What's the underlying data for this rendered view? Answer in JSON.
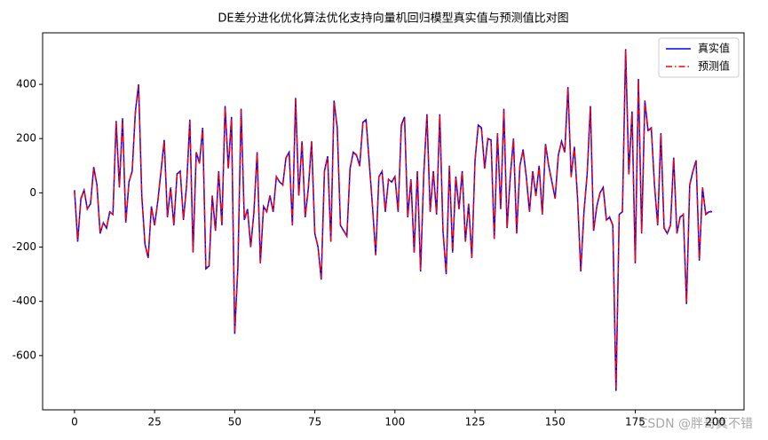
{
  "chart_data": {
    "type": "line",
    "title": "DE差分进化优化算法优化支持向量机回归模型真实值与预测值比对图",
    "watermark": "CSDN @胖哥真不错",
    "legend": "upper right",
    "xlim": [
      -9.95,
      208.95
    ],
    "ylim": [
      -800,
      590
    ],
    "xticks": [
      0,
      25,
      50,
      75,
      100,
      125,
      150,
      175,
      200
    ],
    "yticks": [
      -600,
      -400,
      -200,
      0,
      200,
      400
    ],
    "x": [
      0,
      1,
      2,
      3,
      4,
      5,
      6,
      7,
      8,
      9,
      10,
      11,
      12,
      13,
      14,
      15,
      16,
      17,
      18,
      19,
      20,
      21,
      22,
      23,
      24,
      25,
      26,
      27,
      28,
      29,
      30,
      31,
      32,
      33,
      34,
      35,
      36,
      37,
      38,
      39,
      40,
      41,
      42,
      43,
      44,
      45,
      46,
      47,
      48,
      49,
      50,
      51,
      52,
      53,
      54,
      55,
      56,
      57,
      58,
      59,
      60,
      61,
      62,
      63,
      64,
      65,
      66,
      67,
      68,
      69,
      70,
      71,
      72,
      73,
      74,
      75,
      76,
      77,
      78,
      79,
      80,
      81,
      82,
      83,
      84,
      85,
      86,
      87,
      88,
      89,
      90,
      91,
      92,
      93,
      94,
      95,
      96,
      97,
      98,
      99,
      100,
      101,
      102,
      103,
      104,
      105,
      106,
      107,
      108,
      109,
      110,
      111,
      112,
      113,
      114,
      115,
      116,
      117,
      118,
      119,
      120,
      121,
      122,
      123,
      124,
      125,
      126,
      127,
      128,
      129,
      130,
      131,
      132,
      133,
      134,
      135,
      136,
      137,
      138,
      139,
      140,
      141,
      142,
      143,
      144,
      145,
      146,
      147,
      148,
      149,
      150,
      151,
      152,
      153,
      154,
      155,
      156,
      157,
      158,
      159,
      160,
      161,
      162,
      163,
      164,
      165,
      166,
      167,
      168,
      169,
      170,
      171,
      172,
      173,
      174,
      175,
      176,
      177,
      178,
      179,
      180,
      181,
      182,
      183,
      184,
      185,
      186,
      187,
      188,
      189,
      190,
      191,
      192,
      193,
      194,
      195,
      196,
      197,
      198,
      199
    ],
    "series": [
      {
        "name": "真实值",
        "color": "#0000ff",
        "style": "solid",
        "values": [
          10,
          -180,
          -20,
          10,
          -60,
          -40,
          95,
          30,
          -150,
          -110,
          -130,
          -70,
          -80,
          265,
          20,
          275,
          -110,
          40,
          80,
          300,
          400,
          -10,
          -190,
          -240,
          -50,
          -120,
          -30,
          80,
          195,
          -90,
          20,
          -120,
          70,
          80,
          -100,
          30,
          270,
          -220,
          150,
          110,
          240,
          -280,
          -270,
          -10,
          -140,
          80,
          -120,
          320,
          90,
          280,
          -520,
          -270,
          310,
          -100,
          -60,
          -200,
          -70,
          150,
          -260,
          -50,
          -70,
          -10,
          -70,
          60,
          40,
          30,
          130,
          150,
          -120,
          350,
          -10,
          190,
          -90,
          20,
          190,
          -150,
          -200,
          -320,
          80,
          135,
          -180,
          340,
          240,
          -120,
          -140,
          -160,
          90,
          150,
          140,
          100,
          260,
          270,
          110,
          -50,
          -230,
          60,
          80,
          -70,
          50,
          40,
          60,
          -70,
          250,
          280,
          -90,
          50,
          -220,
          80,
          -290,
          70,
          290,
          -70,
          80,
          -80,
          290,
          -140,
          -300,
          100,
          -220,
          60,
          -60,
          80,
          -180,
          -40,
          -240,
          120,
          250,
          240,
          90,
          200,
          195,
          -170,
          220,
          -60,
          310,
          -130,
          60,
          200,
          -150,
          100,
          160,
          60,
          -70,
          80,
          -10,
          100,
          -80,
          180,
          100,
          40,
          -20,
          140,
          190,
          150,
          390,
          60,
          170,
          -20,
          -290,
          -70,
          70,
          320,
          -140,
          -50,
          0,
          20,
          -100,
          -90,
          -120,
          -730,
          -80,
          -70,
          530,
          70,
          300,
          -260,
          420,
          -150,
          340,
          230,
          240,
          30,
          -120,
          220,
          -130,
          -150,
          -120,
          130,
          -150,
          -90,
          -80,
          -410,
          30,
          80,
          120,
          -250,
          20,
          -80,
          -70,
          -70
        ]
      },
      {
        "name": "预测值",
        "color": "#ff0000",
        "style": "dashdot",
        "values": [
          5,
          -175,
          -25,
          12,
          -58,
          -42,
          92,
          28,
          -148,
          -112,
          -128,
          -72,
          -78,
          260,
          22,
          270,
          -108,
          38,
          82,
          295,
          395,
          -12,
          -188,
          -238,
          -52,
          -118,
          -32,
          78,
          190,
          -88,
          18,
          -118,
          68,
          78,
          -98,
          28,
          265,
          -218,
          148,
          108,
          235,
          -278,
          -268,
          -12,
          -138,
          78,
          -118,
          315,
          88,
          275,
          -510,
          -265,
          305,
          -98,
          -62,
          -198,
          -72,
          148,
          -258,
          -52,
          -68,
          -12,
          -68,
          58,
          42,
          28,
          128,
          148,
          -118,
          345,
          -12,
          188,
          -88,
          18,
          188,
          -148,
          -198,
          -315,
          78,
          132,
          -178,
          335,
          238,
          -118,
          -138,
          -158,
          88,
          148,
          138,
          98,
          255,
          265,
          108,
          -52,
          -228,
          58,
          78,
          -68,
          48,
          42,
          58,
          -68,
          245,
          275,
          -88,
          48,
          -218,
          78,
          -285,
          68,
          285,
          -68,
          78,
          -78,
          285,
          -138,
          -295,
          98,
          -218,
          58,
          -58,
          78,
          -178,
          -42,
          -238,
          118,
          245,
          238,
          88,
          198,
          192,
          -168,
          218,
          -58,
          305,
          -128,
          58,
          198,
          -148,
          98,
          158,
          58,
          -68,
          78,
          -12,
          98,
          -78,
          178,
          98,
          38,
          -22,
          138,
          188,
          148,
          385,
          58,
          168,
          -22,
          -285,
          -68,
          68,
          315,
          -138,
          -52,
          -2,
          18,
          -98,
          -88,
          -118,
          -720,
          -78,
          -68,
          525,
          68,
          295,
          -255,
          415,
          -148,
          335,
          228,
          238,
          28,
          -118,
          218,
          -128,
          -148,
          -118,
          128,
          -148,
          -88,
          -78,
          -405,
          28,
          78,
          118,
          -245,
          18,
          -78,
          -68,
          -68
        ]
      }
    ]
  }
}
